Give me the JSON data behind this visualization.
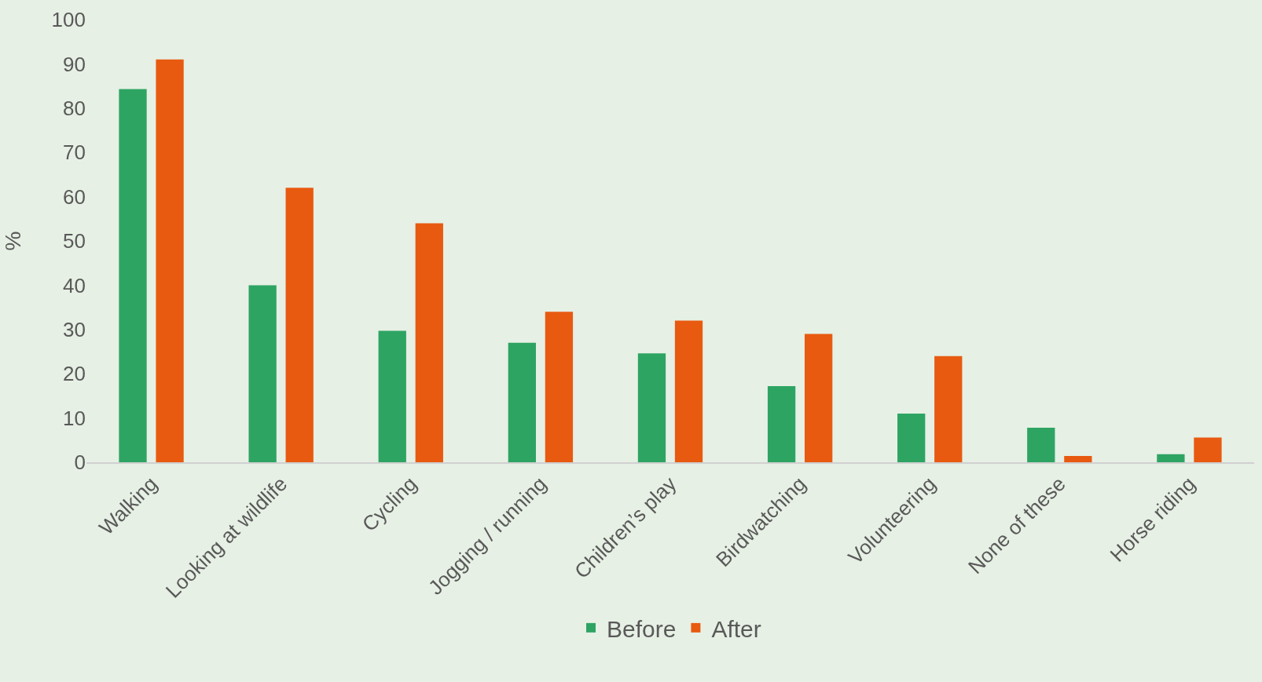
{
  "chart_data": {
    "type": "bar",
    "ylabel": "%",
    "categories": [
      "Walking",
      "Looking at wildlife",
      "Cycling",
      "Jogging / running",
      "Children’s play",
      "Birdwatching",
      "Volunteering",
      "None of these",
      "Horse riding"
    ],
    "series": [
      {
        "name": "Before",
        "color": "#2ea463",
        "values": [
          84.3,
          40,
          29.7,
          27,
          24.6,
          17.2,
          11,
          7.8,
          1.8
        ]
      },
      {
        "name": "After",
        "color": "#e85a10",
        "values": [
          91,
          62,
          54,
          34,
          32,
          29,
          24,
          1.4,
          5.6
        ]
      }
    ],
    "ylim": [
      0,
      100
    ],
    "yticks": [
      0,
      10,
      20,
      30,
      40,
      50,
      60,
      70,
      80,
      90,
      100
    ],
    "grid": false,
    "legend": "bottom"
  }
}
